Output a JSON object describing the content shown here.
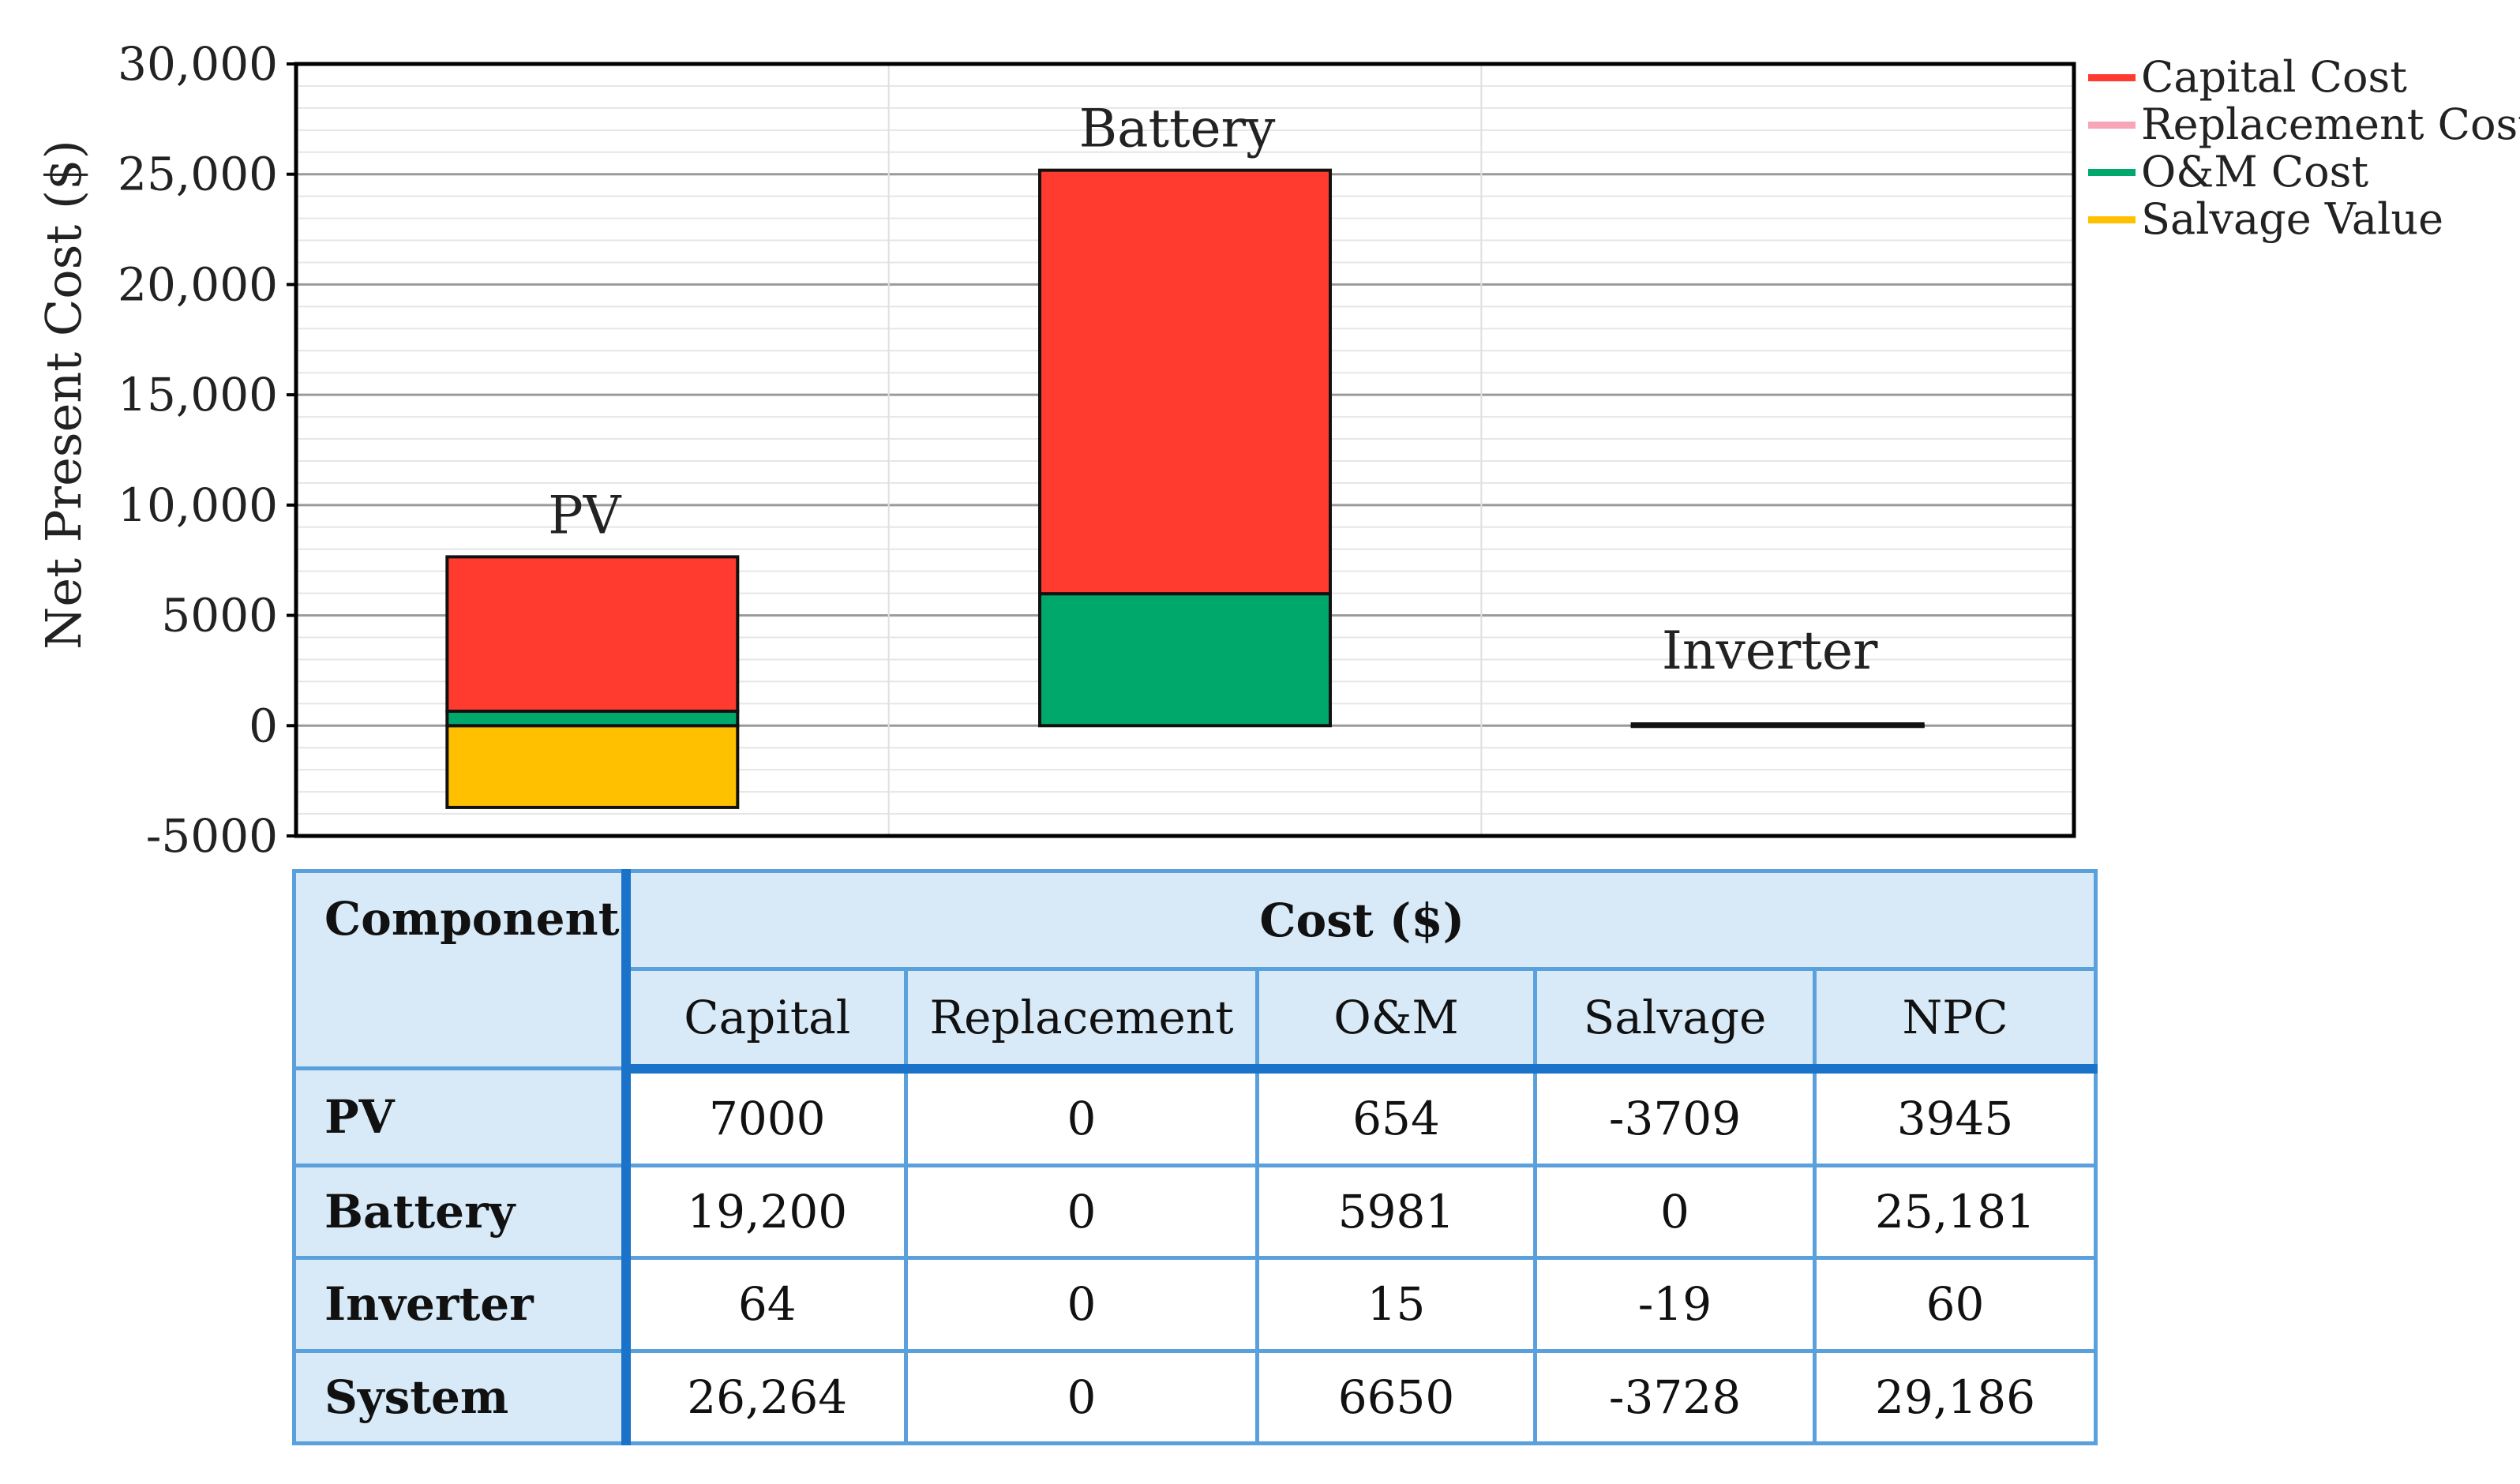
{
  "chart_data": {
    "type": "bar",
    "stacked": true,
    "ylabel": "Net Present Cost ($)",
    "ylim": [
      -5000,
      30000
    ],
    "yticks": [
      "30,000",
      "25,000",
      "20,000",
      "15,000",
      "10,000",
      "5000",
      "0",
      "-5000"
    ],
    "ytick_values": [
      30000,
      25000,
      20000,
      15000,
      10000,
      5000,
      0,
      -5000
    ],
    "grid": true,
    "legend_position": "top-right",
    "categories": [
      "PV",
      "Battery",
      "Inverter"
    ],
    "series": [
      {
        "name": "Capital Cost",
        "color": "#ff3b30",
        "values": [
          7000,
          19200,
          64
        ]
      },
      {
        "name": "Replacement Cost",
        "color": "#f7a6b8",
        "values": [
          0,
          0,
          0
        ]
      },
      {
        "name": "O&M Cost",
        "color": "#00a86b",
        "values": [
          654,
          5981,
          15
        ]
      },
      {
        "name": "Salvage Value",
        "color": "#ffc000",
        "values": [
          -3709,
          0,
          -19
        ]
      }
    ]
  },
  "table": {
    "component_header": "Component",
    "cost_header": "Cost ($)",
    "columns": [
      "Capital",
      "Replacement",
      "O&M",
      "Salvage",
      "NPC"
    ],
    "rows": [
      {
        "label": "PV",
        "values": [
          "7000",
          "0",
          "654",
          "-3709",
          "3945"
        ]
      },
      {
        "label": "Battery",
        "values": [
          "19,200",
          "0",
          "5981",
          "0",
          "25,181"
        ]
      },
      {
        "label": "Inverter",
        "values": [
          "64",
          "0",
          "15",
          "-19",
          "60"
        ]
      },
      {
        "label": "System",
        "values": [
          "26,264",
          "0",
          "6650",
          "-3728",
          "29,186"
        ]
      }
    ]
  }
}
